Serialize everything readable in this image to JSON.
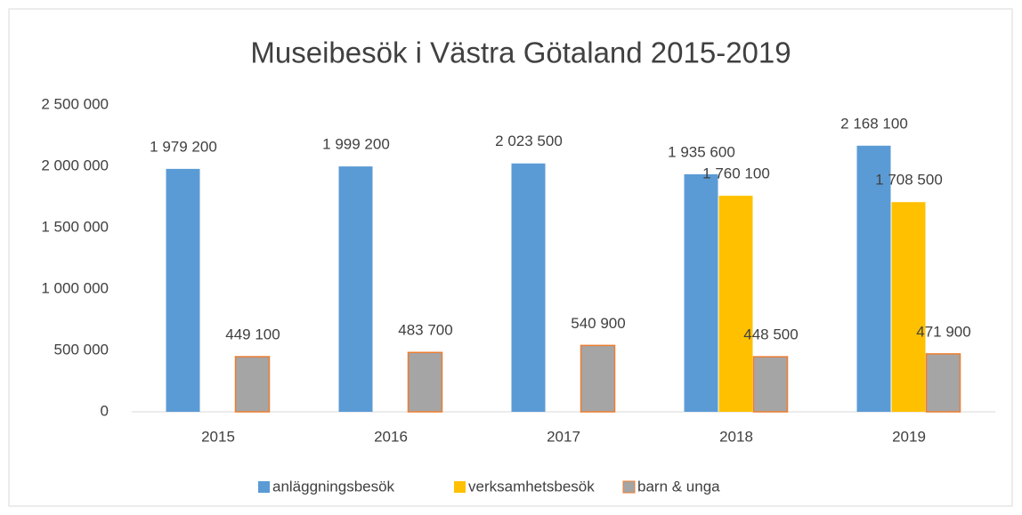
{
  "chart_data": {
    "type": "bar",
    "title": "Museibesök i Västra Götaland 2015-2019",
    "categories": [
      "2015",
      "2016",
      "2017",
      "2018",
      "2019"
    ],
    "series": [
      {
        "name": "anläggningsbesök",
        "color": "#5b9bd5",
        "values": [
          1979200,
          1999200,
          2023500,
          1935600,
          2168100
        ],
        "value_labels": [
          "1 979 200",
          "1 999 200",
          "2 023 500",
          "1 935 600",
          "2 168 100"
        ]
      },
      {
        "name": "verksamhetsbesök",
        "color": "#ffc000",
        "values": [
          null,
          null,
          null,
          1760100,
          1708500
        ],
        "value_labels": [
          null,
          null,
          null,
          "1 760 100",
          "1 708 500"
        ]
      },
      {
        "name": "barn & unga",
        "color": "#a5a5a5",
        "edgecolor": "#ed7d31",
        "values": [
          449100,
          483700,
          540900,
          448500,
          471900
        ],
        "value_labels": [
          "449 100",
          "483 700",
          "540 900",
          "448 500",
          "471 900"
        ]
      }
    ],
    "ylim": [
      0,
      2500000
    ],
    "yticks": [
      0,
      {
        "value": 500000,
        "label": "500 000"
      },
      {
        "value": 1000000,
        "label": "1 000 000"
      },
      {
        "value": 1500000,
        "label": "1 500 000"
      },
      {
        "value": 2000000,
        "label": "2 000 000"
      },
      {
        "value": 2500000,
        "label": "2 500 000"
      }
    ],
    "grid": false,
    "legend": "bottom"
  }
}
